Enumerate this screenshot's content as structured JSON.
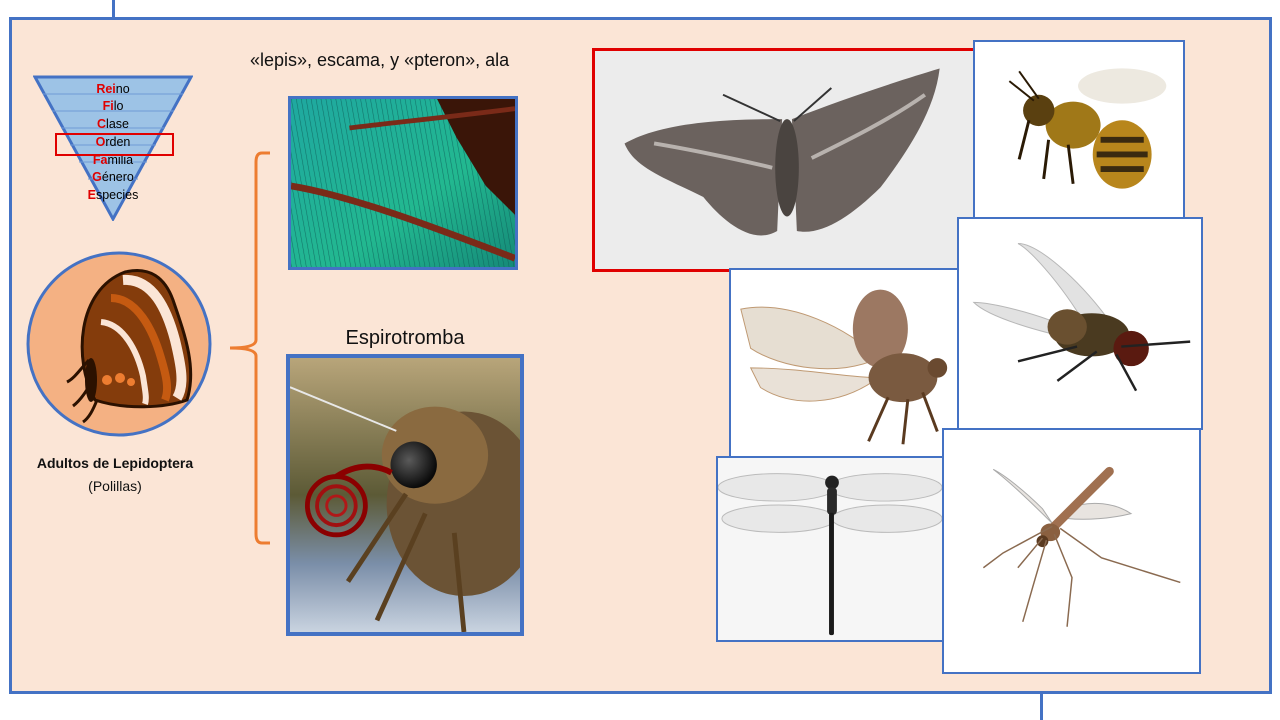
{
  "taxonomy": {
    "levels": [
      {
        "initial": "Rei",
        "rest": "no"
      },
      {
        "initial": "Fi",
        "rest": "lo"
      },
      {
        "initial": "C",
        "rest": "lase"
      },
      {
        "initial": "O",
        "rest": "rden"
      },
      {
        "initial": "Fa",
        "rest": "milia"
      },
      {
        "initial": "G",
        "rest": "énero"
      },
      {
        "initial": "E",
        "rest": "species"
      }
    ],
    "highlighted": "Orden"
  },
  "etymology": "«lepis», escama, y «pteron», ala",
  "proboscis_label": "Espirotromba",
  "order_title": "Adultos de Lepidoptera",
  "order_subtitle": "(Polillas)",
  "colors": {
    "frame": "#4472c4",
    "background": "#fbe5d6",
    "highlight": "#e00000",
    "bracket": "#ed7d31"
  },
  "insects": [
    "moth-photo",
    "bee-photo",
    "beetle-photo",
    "fly-photo",
    "dragonfly-photo",
    "mosquito-photo"
  ]
}
